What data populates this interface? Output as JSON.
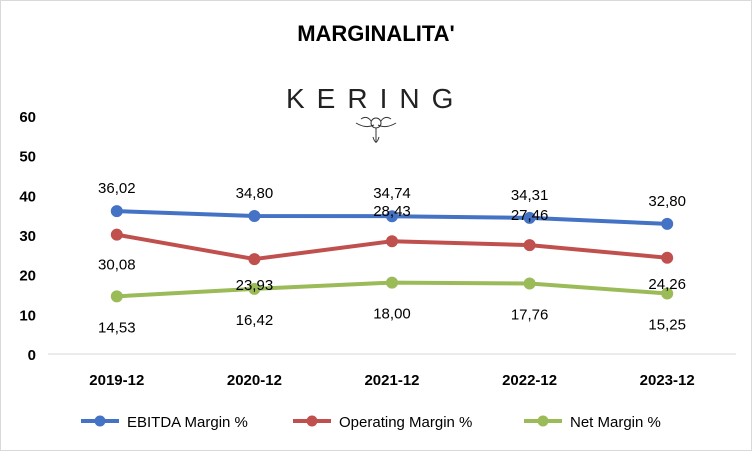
{
  "chart_data": {
    "type": "line",
    "title": "MARGINALITA'",
    "logo_text": "KERING",
    "categories": [
      "2019-12",
      "2020-12",
      "2021-12",
      "2022-12",
      "2023-12"
    ],
    "ylim": [
      0,
      60
    ],
    "yticks": [
      "0",
      "10",
      "20",
      "30",
      "40",
      "50",
      "60"
    ],
    "grid": false,
    "legend_position": "bottom",
    "series": [
      {
        "name": "EBITDA Margin %",
        "color": "#4472c4",
        "values": [
          36.02,
          34.8,
          34.74,
          34.31,
          32.8
        ],
        "labels": [
          "36,02",
          "34,80",
          "34,74",
          "34,31",
          "32,80"
        ]
      },
      {
        "name": "Operating Margin %",
        "color": "#c0504d",
        "values": [
          30.08,
          23.93,
          28.43,
          27.46,
          24.26
        ],
        "labels": [
          "30,08",
          "23,93",
          "28,43",
          "27,46",
          "24,26"
        ]
      },
      {
        "name": "Net Margin %",
        "color": "#9bbb59",
        "values": [
          14.53,
          16.42,
          18.0,
          17.76,
          15.25
        ],
        "labels": [
          "14,53",
          "16,42",
          "18,00",
          "17,76",
          "15,25"
        ]
      }
    ]
  }
}
